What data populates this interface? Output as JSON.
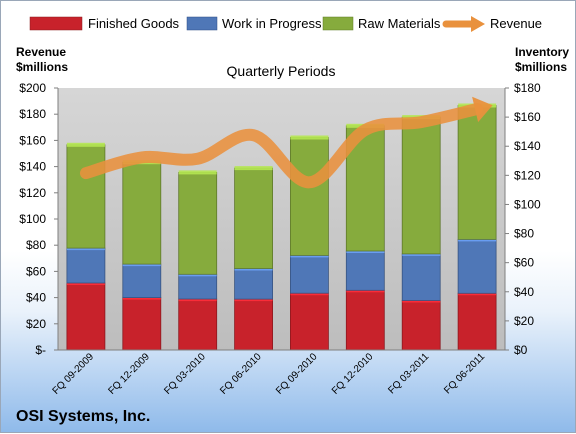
{
  "chart_data": {
    "type": "bar",
    "stacked": true,
    "title": "",
    "subtitle": "Quarterly Periods",
    "footer": "OSI Systems, Inc.",
    "categories": [
      "FQ 09-2009",
      "FQ 12-2009",
      "FQ 03-2010",
      "FQ 06-2010",
      "FQ 09-2010",
      "FQ 12-2010",
      "FQ 03-2011",
      "FQ 06-2011"
    ],
    "series": [
      {
        "name": "Finished Goods",
        "axis": "right",
        "color": "#c8222b",
        "values": [
          46,
          36,
          35,
          35,
          39,
          41,
          34,
          39
        ]
      },
      {
        "name": "Work in Progress",
        "axis": "right",
        "color": "#4f77b7",
        "values": [
          24,
          23,
          17,
          21,
          26,
          27,
          32,
          37
        ]
      },
      {
        "name": "Raw Materials",
        "axis": "right",
        "color": "#86ab3d",
        "values": [
          71,
          70,
          70,
          69,
          81,
          86,
          94,
          92
        ]
      },
      {
        "name": "Revenue",
        "axis": "left",
        "type": "line",
        "color": "#e9913d",
        "values": [
          135,
          147,
          146,
          164,
          128,
          168,
          174,
          184
        ]
      }
    ],
    "y_left": {
      "label_line1": "Revenue",
      "label_line2": "$millions",
      "ylim": [
        0,
        200
      ],
      "ticks": [
        "$-",
        "$20",
        "$40",
        "$60",
        "$80",
        "$100",
        "$120",
        "$140",
        "$160",
        "$180",
        "$200"
      ]
    },
    "y_right": {
      "label_line1": "Inventory",
      "label_line2": "$millions",
      "ylim": [
        0,
        180
      ],
      "ticks": [
        "$0",
        "$20",
        "$40",
        "$60",
        "$80",
        "$100",
        "$120",
        "$140",
        "$160",
        "$180"
      ]
    },
    "legend_position": "top",
    "grid": false
  }
}
